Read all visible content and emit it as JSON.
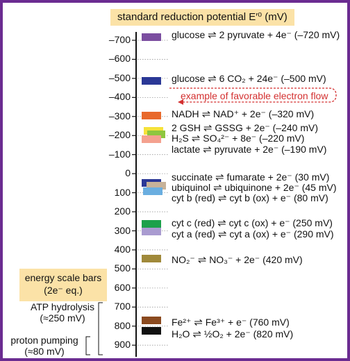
{
  "title": "standard reduction potential E′⁰ (mV)",
  "ticks": [
    "–700",
    "–600",
    "–500",
    "–400",
    "–300",
    "–200",
    "–100",
    "0",
    "100",
    "200",
    "300",
    "400",
    "500",
    "600",
    "700",
    "800",
    "900"
  ],
  "reactions": {
    "glucose_pyruvate": {
      "left": "glucose",
      "right": "2 pyruvate + 4e⁻ (–720 mV)"
    },
    "glucose_co2": {
      "left": "glucose",
      "right": "6 CO₂ + 24e⁻ (–500 mV)"
    },
    "nadh": {
      "left": "NADH",
      "right": "NAD⁺ + 2e⁻ (–320 mV)"
    },
    "gsh": {
      "left": "2 GSH",
      "right": "GSSG + 2e⁻ (–240 mV)"
    },
    "h2s": {
      "left": "H₂S",
      "right": "SO₄²⁻ + 8e⁻ (–220 mV)"
    },
    "lactate": {
      "left": "lactate",
      "right": "pyruvate + 2e⁻ (–190 mV)"
    },
    "succinate": {
      "left": "succinate",
      "right": "fumarate + 2e⁻ (30 mV)"
    },
    "ubiquinol": {
      "left": "ubiquinol",
      "right": "ubiquinone + 2e⁻ (45 mV)"
    },
    "cytb": {
      "left": "cyt b (red)",
      "right": "cyt b (ox) + e⁻ (80 mV)"
    },
    "cytc": {
      "left": "cyt c (red)",
      "right": "cyt c (ox) + e⁻ (250 mV)"
    },
    "cyta": {
      "left": "cyt a (red)",
      "right": "cyt a (ox) + e⁻ (290 mV)"
    },
    "no2": {
      "left": "NO₂⁻",
      "right": "NO₃⁻ + 2e⁻ (420 mV)"
    },
    "fe": {
      "left": "Fe²⁺",
      "right": "Fe³⁺ + e⁻ (760 mV)"
    },
    "h2o": {
      "left": "H₂O",
      "right": "½O₂ + 2e⁻ (820 mV)"
    }
  },
  "example_note": "example of favorable electron flow",
  "energy_box": {
    "line1": "energy scale bars",
    "line2": "(2e⁻ eq.)"
  },
  "atp": {
    "line1": "ATP hydrolysis",
    "line2": "(≈250 mV)"
  },
  "proton": {
    "line1": "proton pumping",
    "line2": "(≈80 mV)"
  },
  "colors": {
    "frame": "#6b2c91",
    "title_bg": "#fbe2a7",
    "note": "#d32f2f",
    "glucose_pyruvate": "#7b4ea0",
    "glucose_co2": "#2b3896",
    "nadh": "#e8692b",
    "gsh": "#f5e23a",
    "h2s": "#f4a18f",
    "h2s_overlap": "#8ec63f",
    "lactate_bar": "#f4a18f",
    "succinate": "#2b3896",
    "ubiquinol": "#c7b299",
    "cytb": "#6aaee0",
    "cytc": "#1ba14a",
    "cyta": "#a99bd0",
    "no2": "#a0893a",
    "fe": "#8b4a1f",
    "h2o": "#111111"
  }
}
